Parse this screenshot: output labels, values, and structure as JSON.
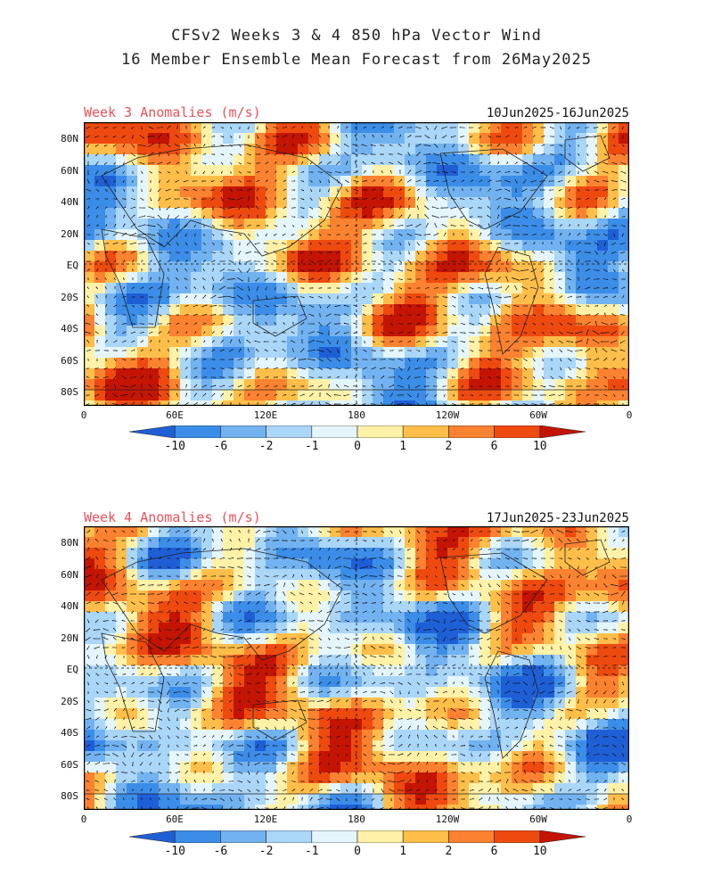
{
  "title_line1": "CFSv2 Weeks 3 & 4 850 hPa Vector Wind",
  "title_line2": "16 Member Ensemble Mean Forecast from 26May2025",
  "panels": [
    {
      "label": "Week 3 Anomalies (m/s)",
      "dates": "10Jun2025-16Jun2025"
    },
    {
      "label": "Week 4 Anomalies (m/s)",
      "dates": "17Jun2025-23Jun2025"
    }
  ],
  "lat_labels": [
    "80N",
    "60N",
    "40N",
    "20N",
    "EQ",
    "20S",
    "40S",
    "60S",
    "80S"
  ],
  "lon_labels": [
    "0",
    "60E",
    "120E",
    "180",
    "120W",
    "60W",
    "0"
  ],
  "colorbar": {
    "labels": [
      "-10",
      "-6",
      "-2",
      "-1",
      "0",
      "1",
      "2",
      "6",
      "10"
    ],
    "colors": [
      "#1f5fd6",
      "#3c8de8",
      "#72b2f0",
      "#aad6f8",
      "#e4f6fc",
      "#fff2a8",
      "#ffbe4a",
      "#fb8230",
      "#ee4a10",
      "#c41404"
    ]
  },
  "colors": {
    "label_red": "#e8515c",
    "negative": "#3c8de8",
    "positive": "#fb8230"
  }
}
